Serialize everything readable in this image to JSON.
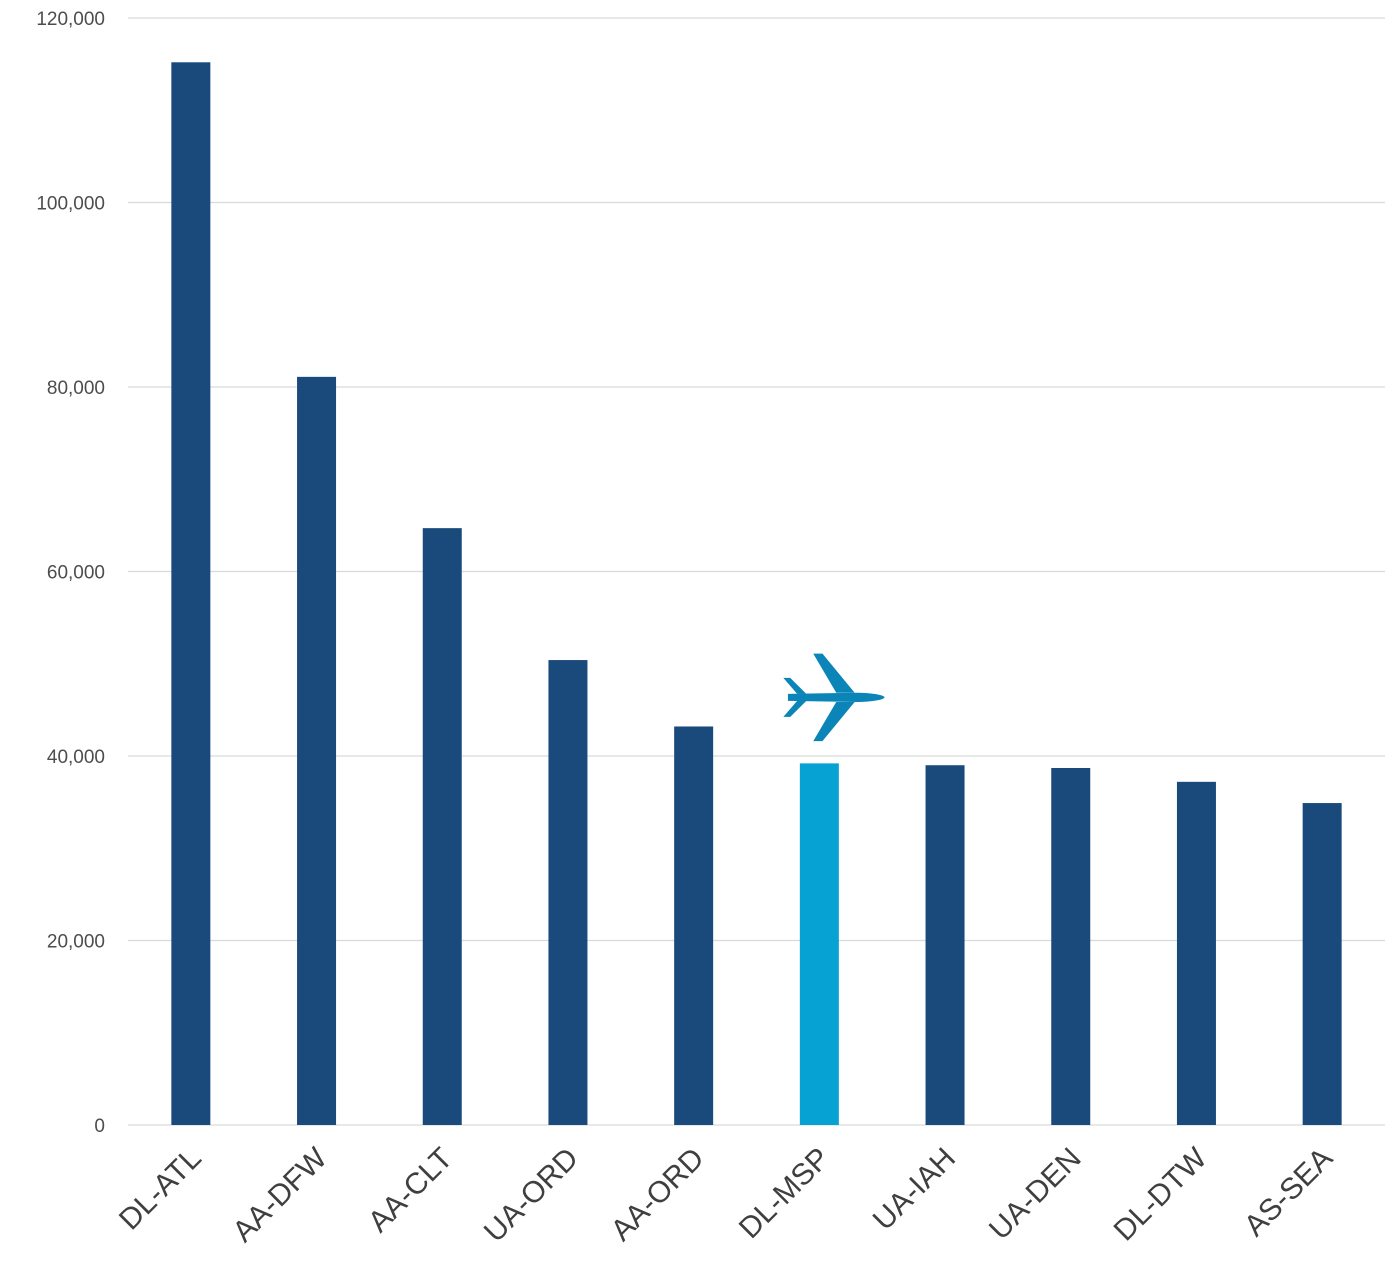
{
  "chart_data": {
    "type": "bar",
    "title": "",
    "xlabel": "",
    "ylabel": "",
    "categories": [
      "DL-ATL",
      "AA-DFW",
      "AA-CLT",
      "UA-ORD",
      "AA-ORD",
      "DL-MSP",
      "UA-IAH",
      "UA-DEN",
      "DL-DTW",
      "AS-SEA"
    ],
    "values": [
      115200,
      81100,
      64700,
      50400,
      43200,
      39200,
      39000,
      38700,
      37200,
      34900
    ],
    "ylim": [
      0,
      120000
    ],
    "yticks": [
      0,
      20000,
      40000,
      60000,
      80000,
      100000,
      120000
    ],
    "ytick_labels": [
      "0",
      "20,000",
      "40,000",
      "60,000",
      "80,000",
      "100,000",
      "120,000"
    ],
    "grid": true,
    "legend": "none",
    "highlight_category": "DL-MSP",
    "highlight_marker_icon": "airplane-icon",
    "colors": {
      "bar": "#1a4a7c",
      "highlight": "#06a2d3",
      "airplane": "#0b84b8",
      "grid": "#d9d9d9",
      "text": "#404040"
    }
  }
}
